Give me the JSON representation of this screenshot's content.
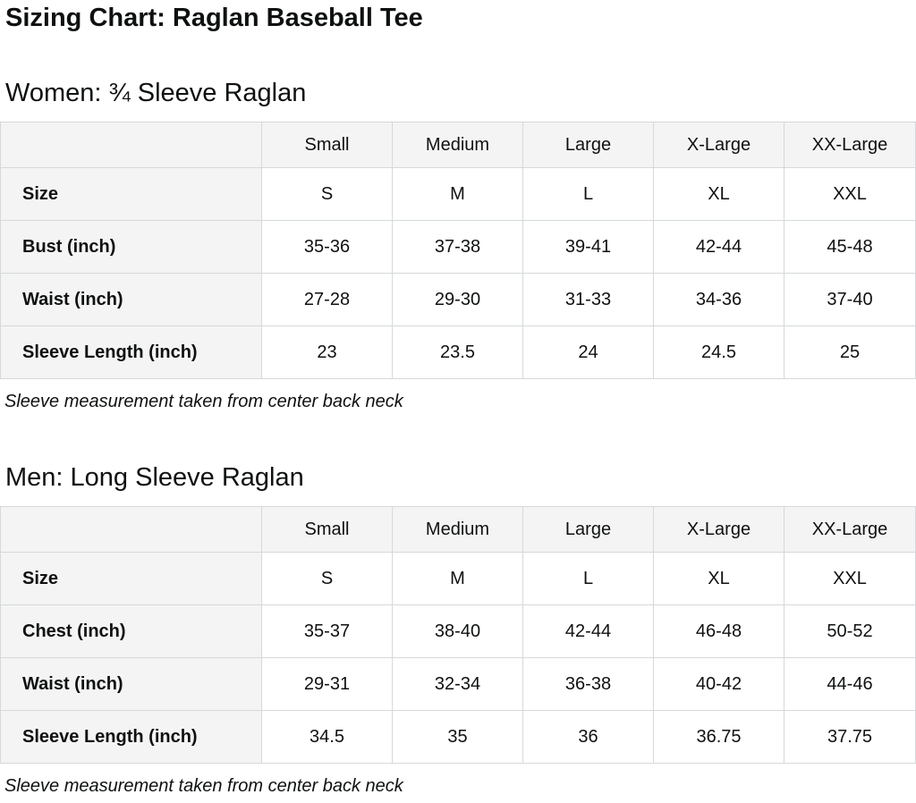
{
  "page": {
    "title": "Sizing Chart: Raglan Baseball Tee"
  },
  "colors": {
    "text": "#0f1111",
    "header-bg": "#f4f4f4",
    "border": "#d5d9d9"
  },
  "sections": [
    {
      "heading": "Women: ¾ Sleeve Raglan",
      "note": "Sleeve measurement taken from center back neck",
      "table": {
        "column_headers": [
          "",
          "Small",
          "Medium",
          "Large",
          "X-Large",
          "XX-Large"
        ],
        "rows": [
          {
            "label": "Size",
            "values": [
              "S",
              "M",
              "L",
              "XL",
              "XXL"
            ]
          },
          {
            "label": "Bust (inch)",
            "values": [
              "35-36",
              "37-38",
              "39-41",
              "42-44",
              "45-48"
            ]
          },
          {
            "label": "Waist (inch)",
            "values": [
              "27-28",
              "29-30",
              "31-33",
              "34-36",
              "37-40"
            ]
          },
          {
            "label": "Sleeve Length (inch)",
            "values": [
              "23",
              "23.5",
              "24",
              "24.5",
              "25"
            ]
          }
        ]
      }
    },
    {
      "heading": "Men: Long Sleeve Raglan",
      "note": "Sleeve measurement taken from center back neck",
      "table": {
        "column_headers": [
          "",
          "Small",
          "Medium",
          "Large",
          "X-Large",
          "XX-Large"
        ],
        "rows": [
          {
            "label": "Size",
            "values": [
              "S",
              "M",
              "L",
              "XL",
              "XXL"
            ]
          },
          {
            "label": "Chest (inch)",
            "values": [
              "35-37",
              "38-40",
              "42-44",
              "46-48",
              "50-52"
            ]
          },
          {
            "label": "Waist (inch)",
            "values": [
              "29-31",
              "32-34",
              "36-38",
              "40-42",
              "44-46"
            ]
          },
          {
            "label": "Sleeve Length (inch)",
            "values": [
              "34.5",
              "35",
              "36",
              "36.75",
              "37.75"
            ]
          }
        ]
      }
    }
  ]
}
